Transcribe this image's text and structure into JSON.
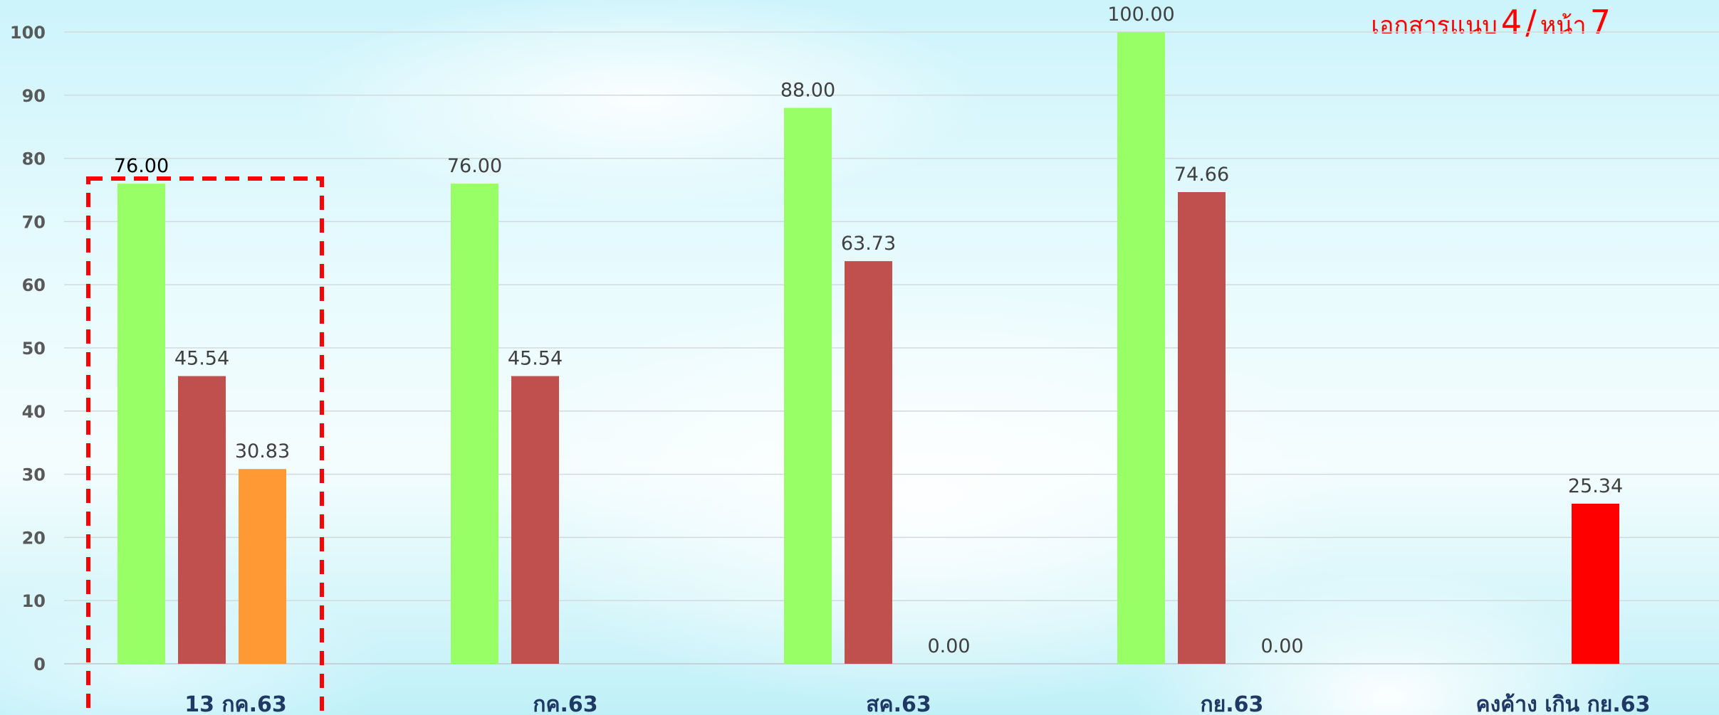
{
  "caption": {
    "prefix": "เอกสารแนบ",
    "attachment_no": "4",
    "separator": "/",
    "page_word": "หน้า",
    "page_no": "7"
  },
  "chart_data": {
    "type": "bar",
    "title": "",
    "xlabel": "",
    "ylabel": "",
    "ylim": [
      0,
      100
    ],
    "yticks": [
      0,
      10,
      20,
      30,
      40,
      50,
      60,
      70,
      80,
      90,
      100
    ],
    "grid": true,
    "legend": "none",
    "categories": [
      "13 กค.63",
      "กค.63",
      "สค.63",
      "กย.63",
      "คงค้าง เกิน กย.63"
    ],
    "groups": [
      {
        "category": "13 กค.63",
        "highlighted": true,
        "bars": [
          {
            "value": 76.0,
            "label": "76.00",
            "color": "#99ff66"
          },
          {
            "value": 45.54,
            "label": "45.54",
            "color": "#c0504d"
          },
          {
            "value": 30.83,
            "label": "30.83",
            "color": "#ff9933"
          }
        ]
      },
      {
        "category": "กค.63",
        "bars": [
          {
            "value": 76.0,
            "label": "76.00",
            "color": "#99ff66"
          },
          {
            "value": 45.54,
            "label": "45.54",
            "color": "#c0504d"
          }
        ]
      },
      {
        "category": "สค.63",
        "bars": [
          {
            "value": 88.0,
            "label": "88.00",
            "color": "#99ff66"
          },
          {
            "value": 63.73,
            "label": "63.73",
            "color": "#c0504d"
          },
          {
            "value": 0.0,
            "label": "0.00",
            "color": "#ff9933"
          }
        ]
      },
      {
        "category": "กย.63",
        "bars": [
          {
            "value": 100.0,
            "label": "100.00",
            "color": "#99ff66"
          },
          {
            "value": 74.66,
            "label": "74.66",
            "color": "#c0504d"
          },
          {
            "value": 0.0,
            "label": "0.00",
            "color": "#ff9933"
          }
        ]
      },
      {
        "category": "คงค้าง เกิน กย.63",
        "bars": [
          {
            "value": 25.34,
            "label": "25.34",
            "color": "#ff0000"
          }
        ]
      }
    ],
    "highlight_color": "#ff0000"
  }
}
